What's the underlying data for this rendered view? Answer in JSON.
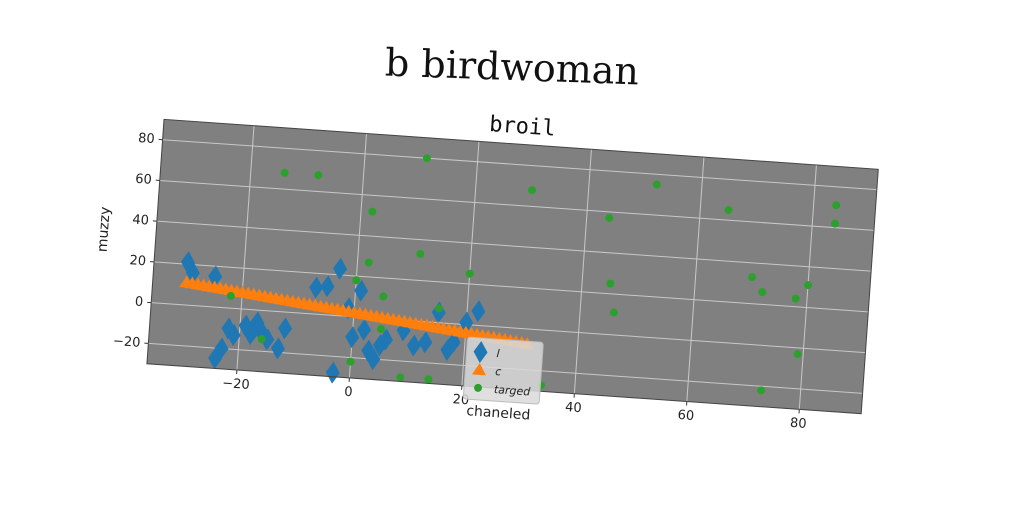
{
  "figure": {
    "suptitle": "b birdwoman"
  },
  "chart_data": {
    "type": "scatter",
    "title": "broil",
    "xlabel": "chaneled",
    "ylabel": "muzzy",
    "xlim": [
      -36,
      91
    ],
    "ylim": [
      -30,
      90
    ],
    "xticks": [
      -20,
      0,
      20,
      40,
      60,
      80
    ],
    "yticks": [
      -20,
      0,
      20,
      40,
      60,
      80
    ],
    "grid": true,
    "background": "#808080",
    "legend_position": "lower-center",
    "series": [
      {
        "name": "l",
        "marker": "diamond",
        "color": "#1f77b4",
        "points": [
          [
            -30,
            21
          ],
          [
            -29,
            16
          ],
          [
            -25,
            15
          ],
          [
            -24,
            -25
          ],
          [
            -23,
            -20
          ],
          [
            -22,
            -10
          ],
          [
            -21,
            -13
          ],
          [
            -19,
            -8
          ],
          [
            -18,
            -12
          ],
          [
            -17,
            -6
          ],
          [
            -16,
            -11
          ],
          [
            -15,
            -14
          ],
          [
            -13,
            -18
          ],
          [
            -12,
            -8
          ],
          [
            -7,
            13
          ],
          [
            -5,
            14
          ],
          [
            -3,
            23
          ],
          [
            -3,
            -28
          ],
          [
            -1,
            4
          ],
          [
            0,
            -10
          ],
          [
            1,
            13
          ],
          [
            2,
            -6
          ],
          [
            3,
            -16
          ],
          [
            4,
            -20
          ],
          [
            5,
            -13
          ],
          [
            6,
            -10
          ],
          [
            9,
            -5
          ],
          [
            11,
            -12
          ],
          [
            13,
            -10
          ],
          [
            15,
            5
          ],
          [
            17,
            -13
          ],
          [
            18,
            -9
          ],
          [
            20,
            1
          ],
          [
            22,
            7
          ]
        ]
      },
      {
        "name": "c",
        "marker": "triangle",
        "color": "#ff7f0e",
        "points": [
          [
            -30,
            11
          ],
          [
            -29,
            10.7
          ],
          [
            -28,
            10.4
          ],
          [
            -27,
            10.1
          ],
          [
            -26,
            9.8
          ],
          [
            -25,
            9.5
          ],
          [
            -24,
            9.2
          ],
          [
            -23,
            8.9
          ],
          [
            -22,
            8.6
          ],
          [
            -21,
            8.3
          ],
          [
            -20,
            8
          ],
          [
            -19,
            7.7
          ],
          [
            -18,
            7.4
          ],
          [
            -17,
            7.1
          ],
          [
            -16,
            6.8
          ],
          [
            -15,
            6.5
          ],
          [
            -14,
            6.2
          ],
          [
            -13,
            5.9
          ],
          [
            -12,
            5.6
          ],
          [
            -11,
            5.3
          ],
          [
            -10,
            5
          ],
          [
            -9,
            4.7
          ],
          [
            -8,
            4.4
          ],
          [
            -7,
            4.1
          ],
          [
            -6,
            3.8
          ],
          [
            -5,
            3.5
          ],
          [
            -4,
            3.2
          ],
          [
            -3,
            2.9
          ],
          [
            -2,
            2.6
          ],
          [
            -1,
            2.3
          ],
          [
            0,
            2
          ],
          [
            1,
            1.7
          ],
          [
            2,
            1.4
          ],
          [
            3,
            1.1
          ],
          [
            4,
            0.8
          ],
          [
            5,
            0.5
          ],
          [
            6,
            0.2
          ],
          [
            7,
            -0.1
          ],
          [
            8,
            -0.4
          ],
          [
            9,
            -0.7
          ],
          [
            10,
            -1
          ],
          [
            11,
            -1.3
          ],
          [
            12,
            -1.6
          ],
          [
            13,
            -1.9
          ],
          [
            14,
            -2.2
          ],
          [
            15,
            -2.5
          ],
          [
            16,
            -2.8
          ],
          [
            17,
            -3.1
          ],
          [
            18,
            -3.4
          ],
          [
            19,
            -3.7
          ],
          [
            20,
            -4
          ],
          [
            21,
            -4.3
          ],
          [
            22,
            -4.6
          ],
          [
            23,
            -4.9
          ],
          [
            24,
            -5.2
          ],
          [
            25,
            -5.5
          ],
          [
            26,
            -5.8
          ],
          [
            27,
            -6.1
          ],
          [
            28,
            -6.4
          ],
          [
            29,
            -6.7
          ],
          [
            30,
            -7
          ],
          [
            31,
            -7.3
          ]
        ]
      },
      {
        "name": "targed",
        "marker": "circle",
        "color": "#2ca02c",
        "points": [
          [
            -22,
            6
          ],
          [
            -14,
            68
          ],
          [
            -16,
            -14
          ],
          [
            -8,
            68
          ],
          [
            0,
            18
          ],
          [
            0,
            -22
          ],
          [
            2,
            27
          ],
          [
            2,
            52
          ],
          [
            5,
            -5
          ],
          [
            5,
            11
          ],
          [
            9,
            -28
          ],
          [
            11,
            33
          ],
          [
            11,
            80
          ],
          [
            14,
            -28
          ],
          [
            15,
            7
          ],
          [
            20,
            25
          ],
          [
            30,
            68
          ],
          [
            34,
            -27
          ],
          [
            44,
            57
          ],
          [
            45,
            25
          ],
          [
            46,
            11
          ],
          [
            52,
            75
          ],
          [
            65,
            65
          ],
          [
            70,
            33
          ],
          [
            72,
            26
          ],
          [
            73,
            -22
          ],
          [
            78,
            24
          ],
          [
            80,
            31
          ],
          [
            79,
            -3
          ],
          [
            84,
            62
          ],
          [
            84,
            71
          ]
        ]
      }
    ]
  }
}
